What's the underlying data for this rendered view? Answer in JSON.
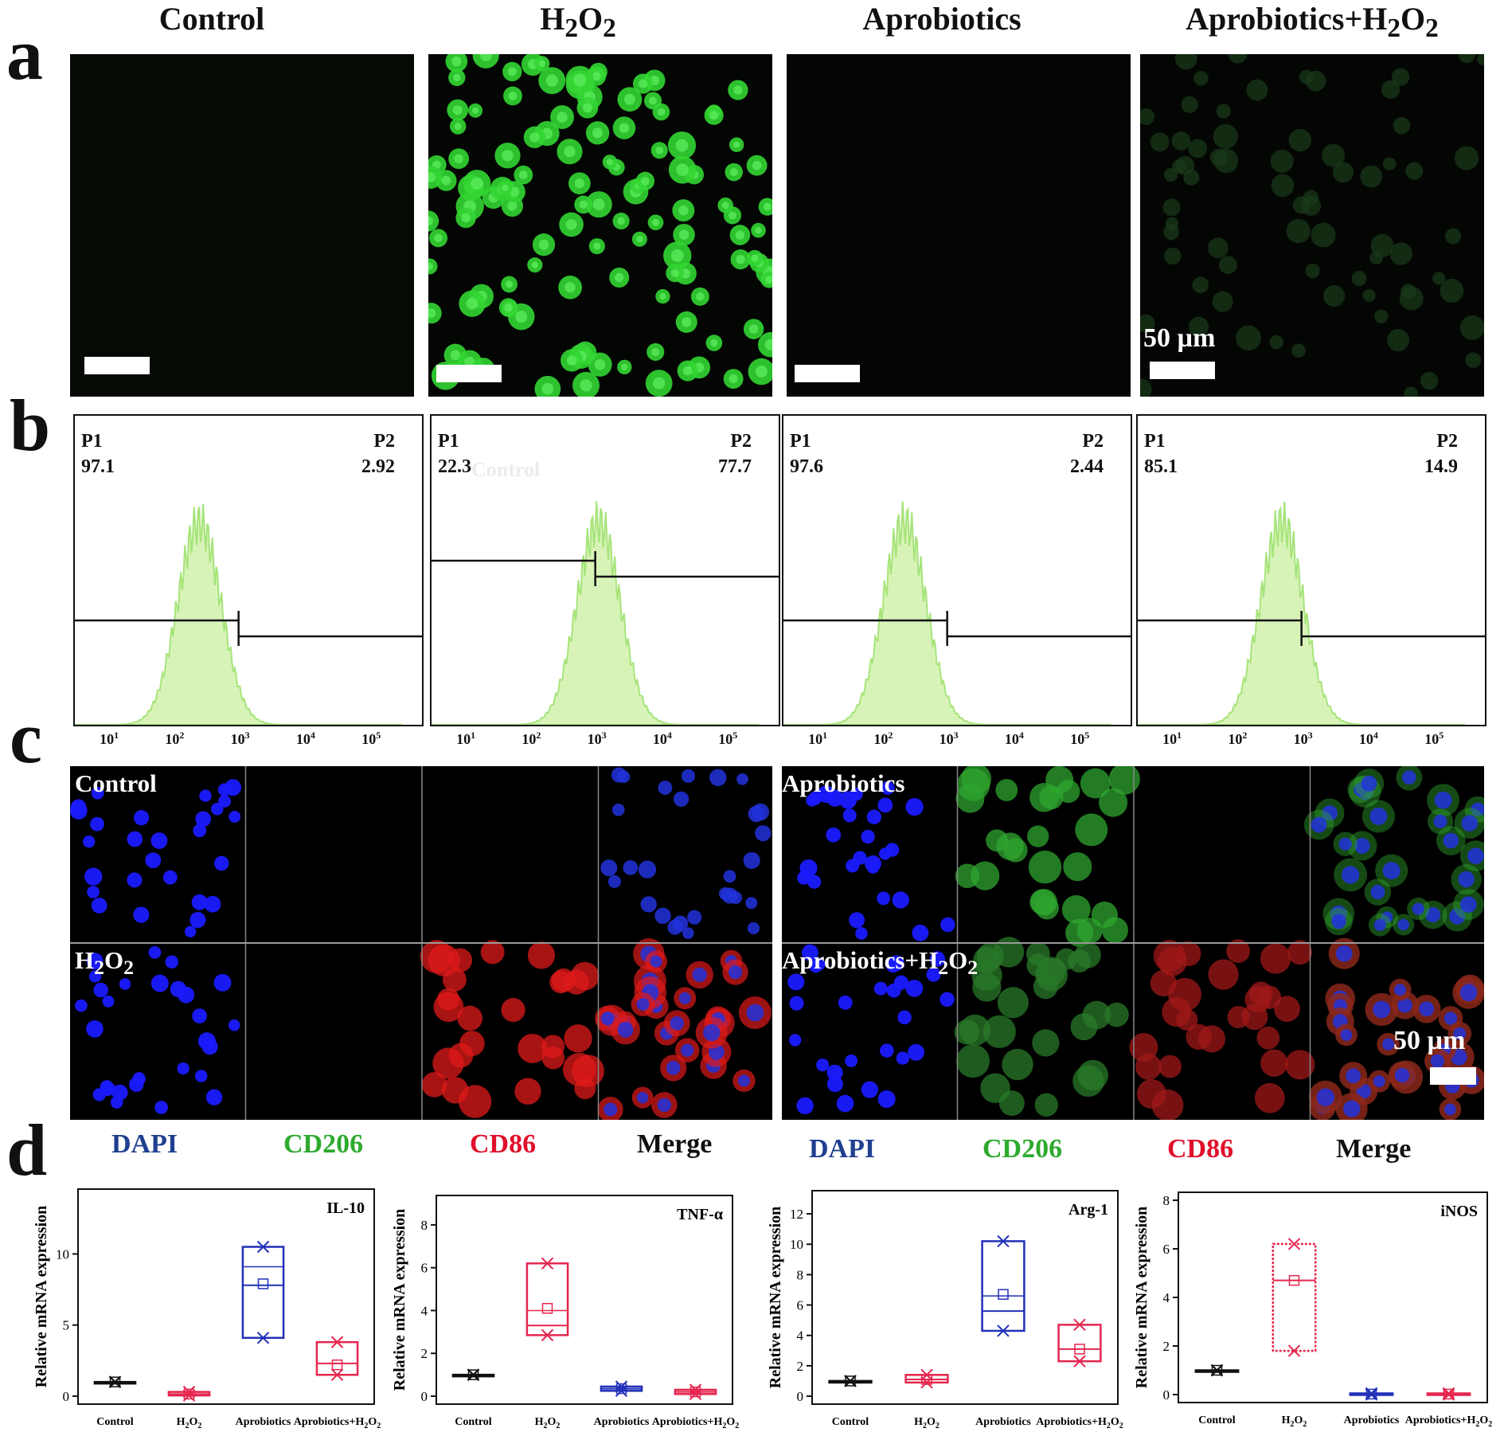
{
  "panel_labels": {
    "a": "a",
    "b": "b",
    "c": "c",
    "d": "d"
  },
  "groups": [
    {
      "html": "Control"
    },
    {
      "html": "H<sub>2</sub>O<sub>2</sub>"
    },
    {
      "html": "Aprobiotics"
    },
    {
      "html": "Aprobiotics+H<sub>2</sub>O<sub>2</sub>"
    }
  ],
  "scale_bar_label": "50 µm",
  "flow": [
    {
      "p1_label": "P1",
      "p1": "97.1",
      "p2_label": "P2",
      "p2": "2.92",
      "peak_log": 2.4,
      "ghost": ""
    },
    {
      "p1_label": "P1",
      "p1": "22.3",
      "p2_label": "P2",
      "p2": "77.7",
      "peak_log": 3.05,
      "ghost": "Control"
    },
    {
      "p1_label": "P1",
      "p1": "97.6",
      "p2_label": "P2",
      "p2": "2.44",
      "peak_log": 2.35,
      "ghost": ""
    },
    {
      "p1_label": "P1",
      "p1": "85.1",
      "p2_label": "P2",
      "p2": "14.9",
      "peak_log": 2.7,
      "ghost": ""
    }
  ],
  "flow_axis_ticks": [
    "10",
    "10",
    "10",
    "10",
    "10"
  ],
  "flow_axis_exponents": [
    "1",
    "2",
    "3",
    "4",
    "5"
  ],
  "confocal_labels": [
    {
      "html": "Control"
    },
    {
      "html": "Aprobiotics"
    },
    {
      "html": "H<sub>2</sub>O<sub>2</sub>"
    },
    {
      "html": "Aprobiotics+H<sub>2</sub>O<sub>2</sub>"
    }
  ],
  "stains": [
    {
      "text": "DAPI",
      "color": "#1f3f8f"
    },
    {
      "text": "CD206",
      "color": "#2eaa2e"
    },
    {
      "text": "CD86",
      "color": "#e0102a"
    },
    {
      "text": "Merge",
      "color": "#111111"
    }
  ],
  "colors": {
    "flow_fill": "#d8f3b8",
    "flow_line": "#a6e47a",
    "box_blue": "#2230b8",
    "box_red": "#e5264e",
    "box_black": "#111111"
  },
  "chart_data": [
    {
      "type": "box",
      "title": "IL-10",
      "ylabel": "Relative mRNA expression",
      "ylim": [
        0,
        14
      ],
      "yticks": [
        0,
        5,
        10
      ],
      "categories": [
        "Control",
        "H<sub>2</sub>O<sub>2</sub>",
        "Aprobiotics",
        "Aprobiotics+H<sub>2</sub>O<sub>2</sub>"
      ],
      "boxes": [
        {
          "q1": 1.0,
          "q3": 1.0,
          "median": 1.0,
          "mean": 1.0,
          "min": 1.0,
          "max": 1.0,
          "color": "#111111"
        },
        {
          "q1": 0.05,
          "q3": 0.3,
          "median": 0.15,
          "mean": 0.15,
          "min": 0.05,
          "max": 0.3,
          "color": "#e5264e"
        },
        {
          "q1": 4.1,
          "q3": 10.5,
          "median": 7.8,
          "mean": 7.9,
          "min": 4.1,
          "max": 10.5,
          "mean_line": 9.1,
          "color": "#2230b8"
        },
        {
          "q1": 1.5,
          "q3": 3.8,
          "median": 2.3,
          "mean": 2.2,
          "min": 1.5,
          "max": 3.8,
          "color": "#e5264e"
        }
      ]
    },
    {
      "type": "box",
      "title": "TNF-α",
      "ylabel": "Relative mRNA expression",
      "ylim": [
        0,
        9
      ],
      "yticks": [
        0,
        2,
        4,
        6,
        8
      ],
      "categories": [
        "Control",
        "H<sub>2</sub>O<sub>2</sub>",
        "Aprobiotics",
        "Aprobiotics+H<sub>2</sub>O<sub>2</sub>"
      ],
      "boxes": [
        {
          "q1": 1.0,
          "q3": 1.0,
          "median": 1.0,
          "mean": 1.0,
          "min": 1.0,
          "max": 1.0,
          "color": "#111111"
        },
        {
          "q1": 2.85,
          "q3": 6.2,
          "median": 3.3,
          "mean": 4.1,
          "min": 2.85,
          "max": 6.2,
          "mean_line": 4.0,
          "color": "#e5264e"
        },
        {
          "q1": 0.25,
          "q3": 0.45,
          "median": 0.35,
          "mean": 0.35,
          "min": 0.25,
          "max": 0.45,
          "color": "#2230b8"
        },
        {
          "q1": 0.1,
          "q3": 0.3,
          "median": 0.2,
          "mean": 0.2,
          "min": 0.1,
          "max": 0.3,
          "color": "#e5264e"
        }
      ]
    },
    {
      "type": "box",
      "title": "Arg-1",
      "ylabel": "Relative mRNA expression",
      "ylim": [
        0,
        13
      ],
      "yticks": [
        0,
        2,
        4,
        6,
        8,
        10,
        12
      ],
      "categories": [
        "Control",
        "H<sub>2</sub>O<sub>2</sub>",
        "Aprobiotics",
        "Aprobiotics+H<sub>2</sub>O<sub>2</sub>"
      ],
      "boxes": [
        {
          "q1": 1.0,
          "q3": 1.0,
          "median": 1.0,
          "mean": 1.0,
          "min": 1.0,
          "max": 1.0,
          "color": "#111111"
        },
        {
          "q1": 0.9,
          "q3": 1.4,
          "median": 1.1,
          "mean": 1.1,
          "min": 0.9,
          "max": 1.4,
          "color": "#e5264e"
        },
        {
          "q1": 4.3,
          "q3": 10.2,
          "median": 5.6,
          "mean": 6.7,
          "min": 4.3,
          "max": 10.2,
          "mean_line": 6.6,
          "color": "#2230b8"
        },
        {
          "q1": 2.3,
          "q3": 4.7,
          "median": 3.1,
          "mean": 3.1,
          "min": 2.3,
          "max": 4.7,
          "color": "#e5264e"
        }
      ]
    },
    {
      "type": "box",
      "title": "iNOS",
      "ylabel": "Relative mRNA expression",
      "ylim": [
        0,
        8
      ],
      "yticks": [
        0,
        2,
        4,
        6,
        8
      ],
      "categories": [
        "Control",
        "H<sub>2</sub>O<sub>2</sub>",
        "Aprobiotics",
        "Aprobiotics+H<sub>2</sub>O<sub>2</sub>"
      ],
      "boxes": [
        {
          "q1": 1.0,
          "q3": 1.0,
          "median": 1.0,
          "mean": 1.0,
          "min": 1.0,
          "max": 1.0,
          "color": "#111111"
        },
        {
          "q1": 1.8,
          "q3": 6.2,
          "median": 4.7,
          "mean": 4.7,
          "min": 1.8,
          "max": 6.2,
          "color": "#e5264e",
          "dotted": true
        },
        {
          "q1": 0.0,
          "q3": 0.05,
          "median": 0.02,
          "mean": 0.02,
          "min": 0.0,
          "max": 0.05,
          "color": "#2230b8"
        },
        {
          "q1": 0.0,
          "q3": 0.05,
          "median": 0.02,
          "mean": 0.02,
          "min": 0.0,
          "max": 0.05,
          "color": "#e5264e"
        }
      ]
    }
  ]
}
